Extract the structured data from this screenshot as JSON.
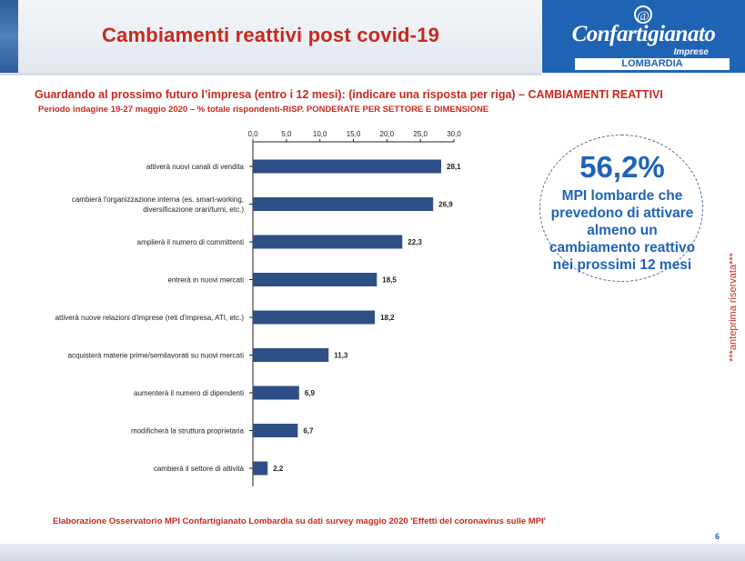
{
  "header": {
    "title": "Cambiamenti reattivi post covid-19",
    "logo_name": "Confartigianato",
    "logo_sub": "Imprese",
    "logo_region": "LOMBARDIA",
    "logo_symbol": "@"
  },
  "question": "Guardando al prossimo futuro l’impresa (entro i 12 mesi): (indicare una risposta per riga) – CAMBIAMENTI REATTIVI",
  "period": "Periodo indagine 19-27 maggio 2020 – % totale rispondenti-RISP. PONDERATE PER SETTORE E DIMENSIONE",
  "colors": {
    "accent": "#c8291e",
    "brand": "#1f63b5",
    "bar": "#2e4f86"
  },
  "chart_data": {
    "type": "bar",
    "orientation": "horizontal",
    "categories": [
      [
        "attiverà nuovi canali di vendita"
      ],
      [
        "cambierà l'organizzazione interna (es. smart-working,",
        "diversificazione orari/turni, etc.)"
      ],
      [
        "amplierà il numero di committenti"
      ],
      [
        "entrerà in nuovi mercati"
      ],
      [
        "attiverà nuove relazioni d'imprese (reti d'impresa, ATI, etc.)"
      ],
      [
        "acquisterà materie prime/semilavorati su nuovi mercati"
      ],
      [
        "aumenterà il numero di dipendenti"
      ],
      [
        "modificherà la struttura proprietaria"
      ],
      [
        "cambierà il settore di attività"
      ]
    ],
    "values": [
      28.1,
      26.9,
      22.3,
      18.5,
      18.2,
      11.3,
      6.9,
      6.7,
      2.2
    ],
    "value_labels": [
      "28,1",
      "26,9",
      "22,3",
      "18,5",
      "18,2",
      "11,3",
      "6,9",
      "6,7",
      "2,2"
    ],
    "xlim": [
      0,
      30
    ],
    "ticks": [
      0,
      5,
      10,
      15,
      20,
      25,
      30
    ],
    "tick_labels": [
      "0,0",
      "5,0",
      "10,0",
      "15,0",
      "20,0",
      "25,0",
      "30,0"
    ],
    "axis_position": "top",
    "grid": false,
    "legend": "none"
  },
  "callout": {
    "value": "56,2%",
    "text": "MPI lombarde che prevedono di attivare almeno un cambiamento reattivo nei prossimi 12 mesi"
  },
  "side_note": "***anteprima riservata***",
  "source": "Elaborazione Osservatorio MPI Confartigianato Lombardia su dati survey maggio 2020 'Effetti del coronavirus sulle MPI'",
  "page_number": "6"
}
